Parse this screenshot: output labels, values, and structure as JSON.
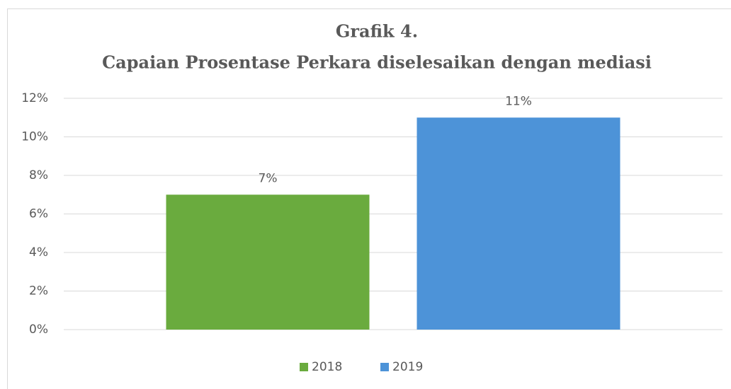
{
  "chart_data": {
    "type": "bar",
    "title": "Grafik 4.",
    "subtitle": "Capaian Prosentase Perkara diselesaikan dengan mediasi",
    "categories": [
      null
    ],
    "series": [
      {
        "name": "2018",
        "color": "#6aab3e",
        "values": [
          7
        ],
        "value_labels": [
          "7%"
        ]
      },
      {
        "name": "2019",
        "color": "#4d93d8",
        "values": [
          11
        ],
        "value_labels": [
          "11%"
        ]
      }
    ],
    "ylim": [
      0,
      12
    ],
    "yticks": [
      {
        "value": 0,
        "label": "0%"
      },
      {
        "value": 2,
        "label": "2%"
      },
      {
        "value": 4,
        "label": "4%"
      },
      {
        "value": 6,
        "label": "6%"
      },
      {
        "value": 8,
        "label": "8%"
      },
      {
        "value": 10,
        "label": "10%"
      },
      {
        "value": 12,
        "label": "12%"
      }
    ],
    "grid": true,
    "legend": "bottom"
  }
}
